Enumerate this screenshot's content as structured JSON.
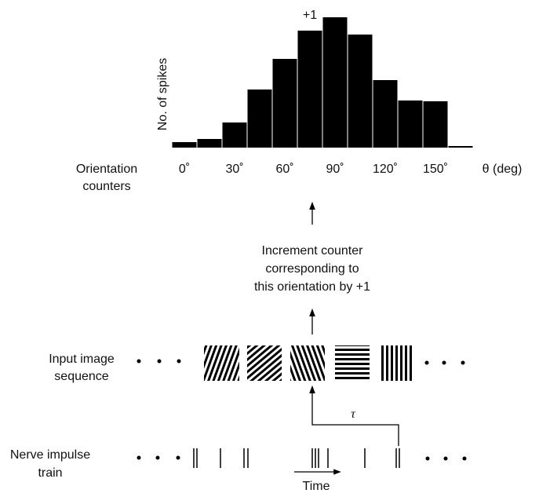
{
  "histogram": {
    "type": "bar",
    "ylabel": "No. of spikes",
    "peak_label": "+1",
    "x": [
      0,
      15,
      30,
      45,
      60,
      75,
      90,
      105,
      120,
      135,
      150,
      165
    ],
    "values": [
      7,
      11,
      32,
      74,
      113,
      149,
      166,
      144,
      86,
      60,
      59,
      2
    ],
    "xlim": [
      -7.5,
      172.5
    ],
    "ylim": [
      0,
      170
    ],
    "xticks": [
      {
        "value": 0,
        "label": "0˚"
      },
      {
        "value": 30,
        "label": "30˚"
      },
      {
        "value": 60,
        "label": "60˚"
      },
      {
        "value": 90,
        "label": "90˚"
      },
      {
        "value": 120,
        "label": "120˚"
      },
      {
        "value": 150,
        "label": "150˚"
      }
    ],
    "xunit_label": "θ (deg)",
    "color": "#000000"
  },
  "labels": {
    "counters": [
      "Orientation",
      "counters"
    ],
    "increment": [
      "Increment counter",
      "corresponding to",
      "this orientation by +1"
    ],
    "input": [
      "Input image",
      "sequence"
    ],
    "nerve": [
      "Nerve impulse",
      "train"
    ],
    "tau": "τ",
    "time": "Time"
  }
}
